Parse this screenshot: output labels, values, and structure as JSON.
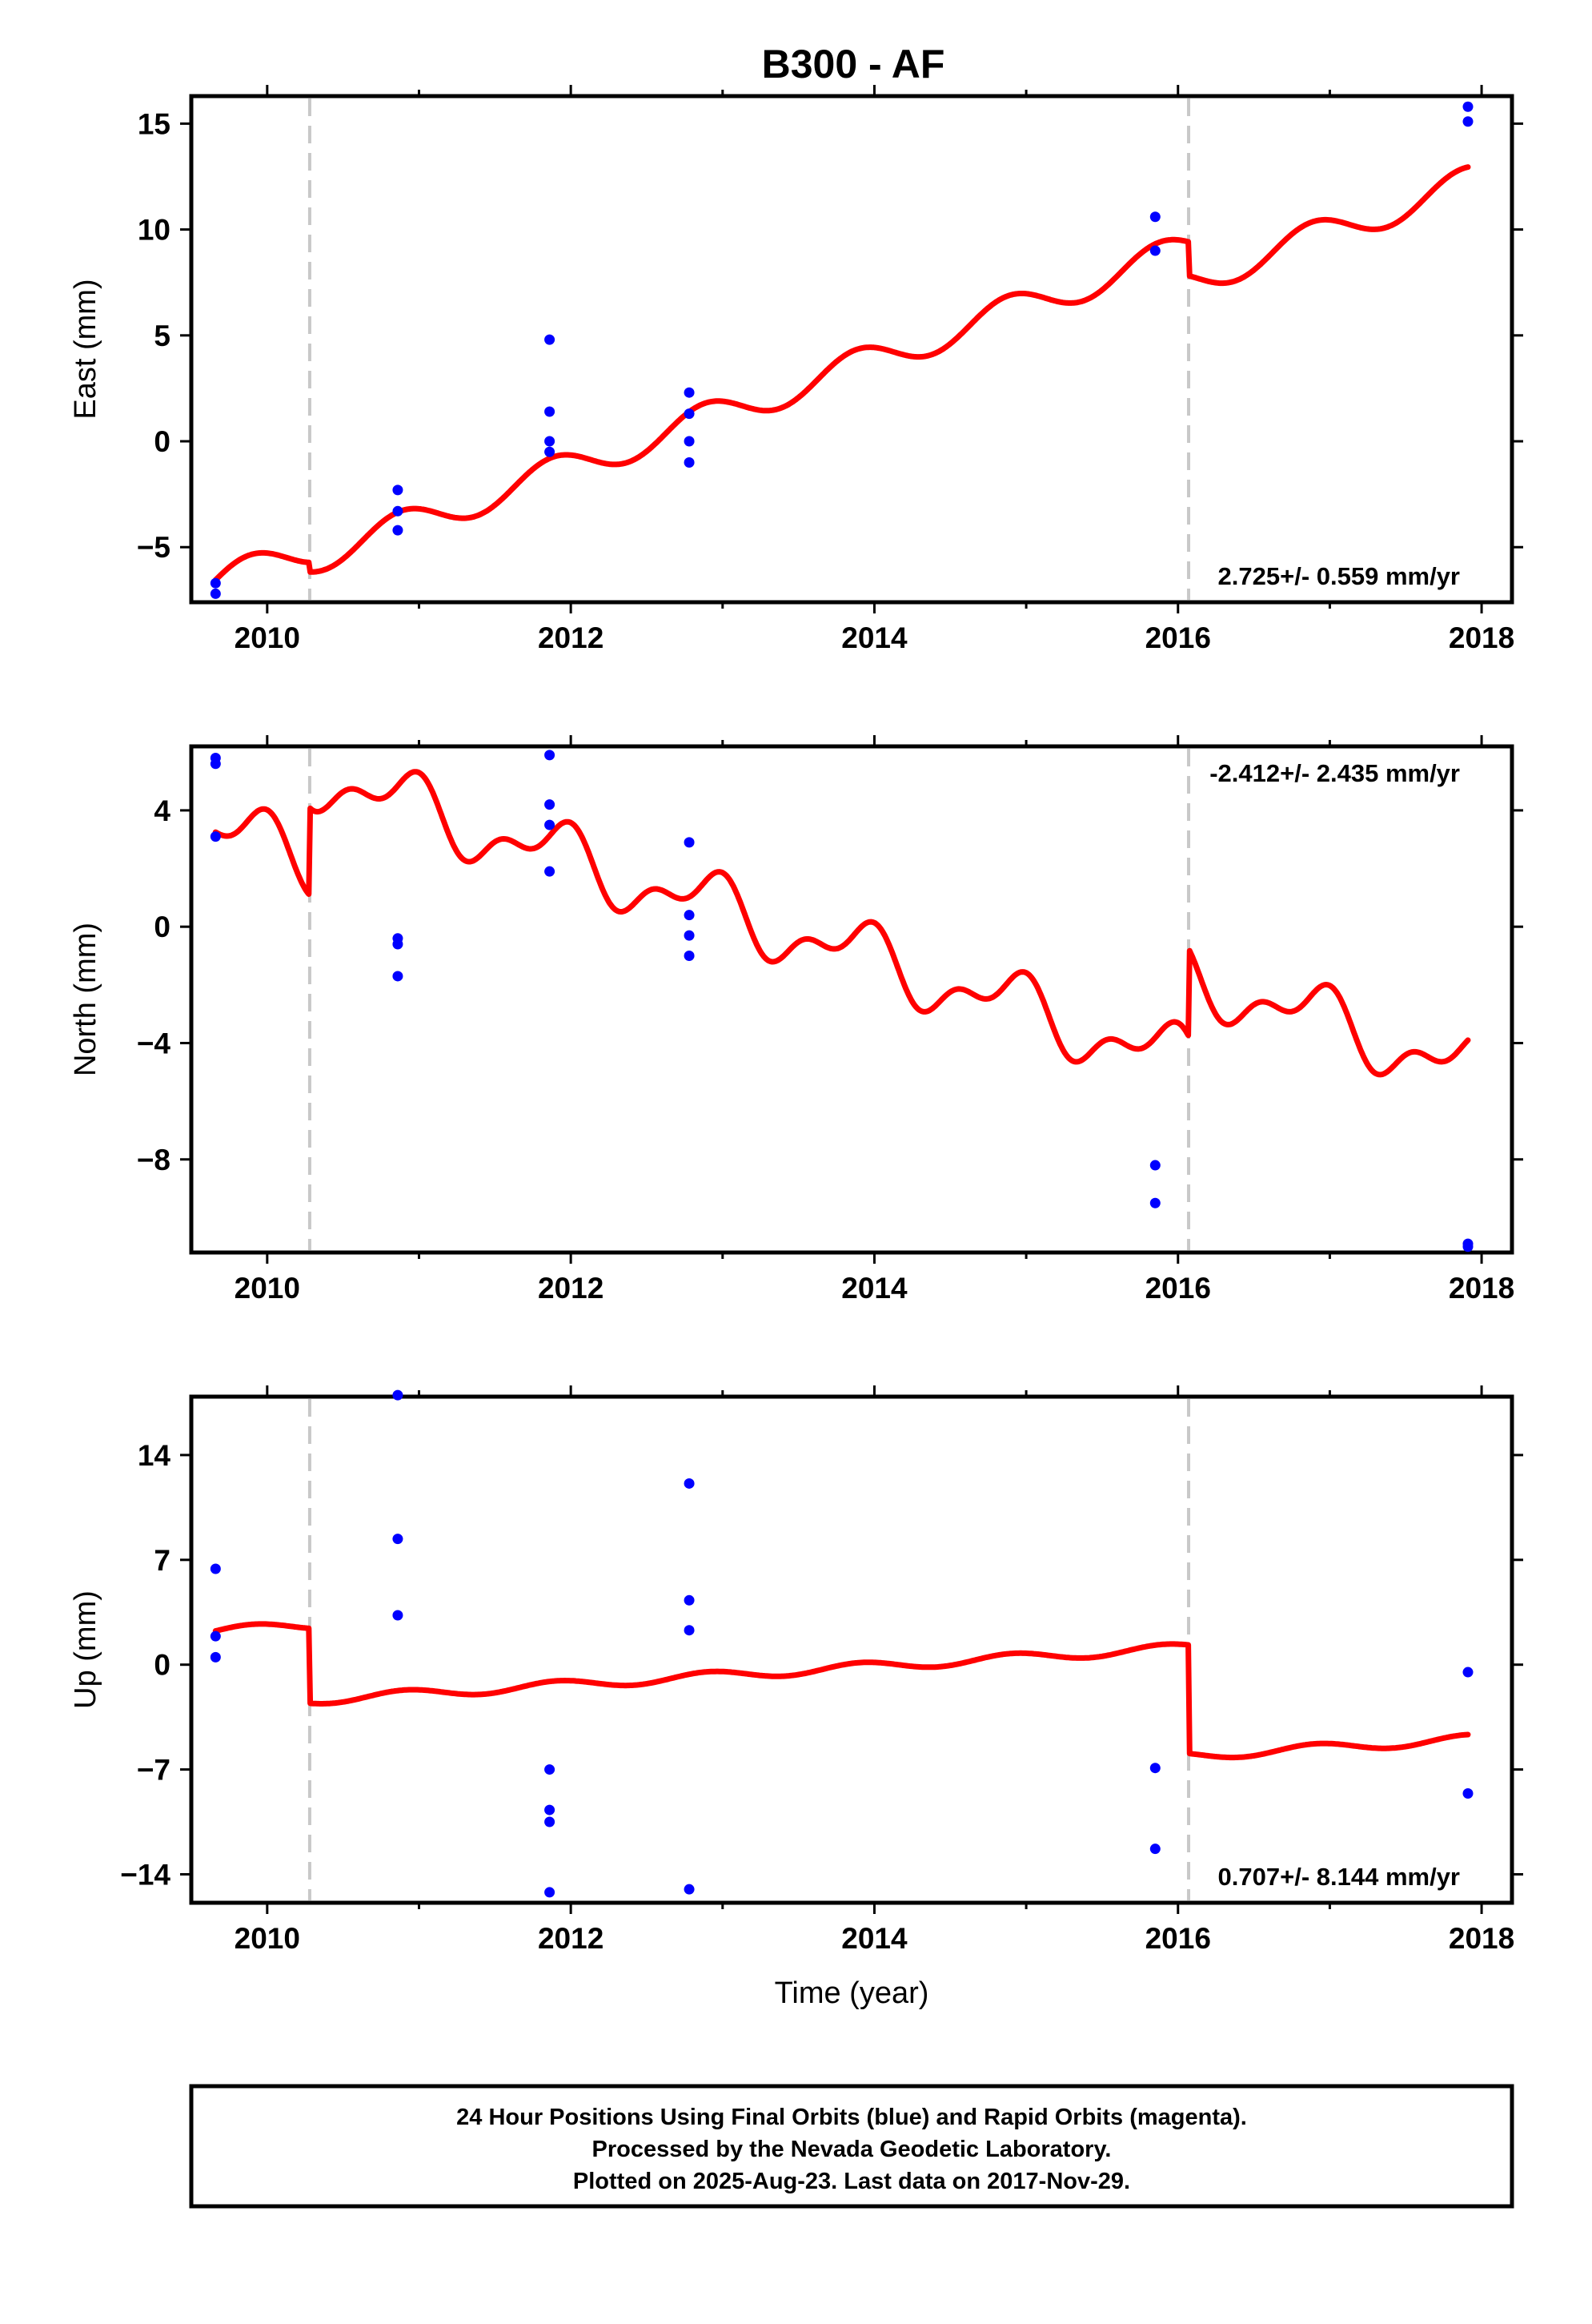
{
  "title": "B300 - AF",
  "chart_data": [
    {
      "type": "scatter",
      "ylabel": "East (mm)",
      "xlabel": "",
      "xlim": [
        2009.5,
        2018.2
      ],
      "ylim": [
        -7.6,
        16.3
      ],
      "xticks": [
        2010,
        2012,
        2014,
        2016,
        2018
      ],
      "yticks": [
        -5,
        0,
        5,
        10,
        15
      ],
      "ytick_labels": [
        "−5",
        "0",
        "5",
        "10",
        "15"
      ],
      "rate_label": "2.725+/- 0.559 mm/yr",
      "rate_position": "bottom-right",
      "breaks": [
        2010.28,
        2016.07
      ],
      "series": [
        {
          "color": "#0000ff",
          "points": [
            [
              2009.66,
              -6.7
            ],
            [
              2009.66,
              -7.2
            ],
            [
              2010.86,
              -2.3
            ],
            [
              2010.86,
              -3.3
            ],
            [
              2010.86,
              -4.2
            ],
            [
              2011.86,
              4.8
            ],
            [
              2011.86,
              1.4
            ],
            [
              2011.86,
              0.0
            ],
            [
              2011.86,
              -0.5
            ],
            [
              2012.78,
              2.3
            ],
            [
              2012.78,
              1.3
            ],
            [
              2012.78,
              0.0
            ],
            [
              2012.78,
              -1.0
            ],
            [
              2015.85,
              10.6
            ],
            [
              2015.85,
              9.0
            ],
            [
              2017.91,
              15.8
            ],
            [
              2017.91,
              15.1
            ]
          ]
        },
        {
          "color": "#ff0000",
          "model": {
            "x0": 2009.66,
            "y0": -6.55,
            "x_end": 2017.91,
            "rate": 2.54,
            "amp1": 0.75,
            "phase1": 2009.63,
            "amp2": 0.0,
            "phase2": 2009.9,
            "steps": [
              [
                2010.28,
                -0.45
              ],
              [
                2016.07,
                -1.6
              ]
            ]
          }
        }
      ]
    },
    {
      "type": "scatter",
      "ylabel": "North (mm)",
      "xlabel": "",
      "xlim": [
        2009.5,
        2018.2
      ],
      "ylim": [
        -11.2,
        6.2
      ],
      "xticks": [
        2010,
        2012,
        2014,
        2016,
        2018
      ],
      "yticks": [
        -8,
        -4,
        0,
        4
      ],
      "ytick_labels": [
        "−8",
        "−4",
        "0",
        "4"
      ],
      "rate_label": "-2.412+/- 2.435 mm/yr",
      "rate_position": "top-right",
      "breaks": [
        2010.28,
        2016.07
      ],
      "series": [
        {
          "color": "#0000ff",
          "points": [
            [
              2009.66,
              5.8
            ],
            [
              2009.66,
              5.6
            ],
            [
              2009.66,
              3.1
            ],
            [
              2010.86,
              -0.4
            ],
            [
              2010.86,
              -0.6
            ],
            [
              2010.86,
              -1.7
            ],
            [
              2011.86,
              5.9
            ],
            [
              2011.86,
              4.2
            ],
            [
              2011.86,
              3.5
            ],
            [
              2011.86,
              1.9
            ],
            [
              2012.78,
              2.9
            ],
            [
              2012.78,
              0.4
            ],
            [
              2012.78,
              -0.3
            ],
            [
              2012.78,
              -1.0
            ],
            [
              2015.85,
              -8.2
            ],
            [
              2015.85,
              -9.5
            ],
            [
              2017.91,
              -10.9
            ],
            [
              2017.91,
              -11.0
            ]
          ]
        },
        {
          "color": "#ff0000",
          "model": {
            "x0": 2009.66,
            "y0": 3.25,
            "x_end": 2017.91,
            "rate": -1.72,
            "amp1": 0.9,
            "phase1": 2009.66,
            "amp2": 0.55,
            "phase2": 2009.9,
            "steps": [
              [
                2010.28,
                3.0
              ],
              [
                2016.07,
                3.0
              ]
            ]
          }
        }
      ]
    },
    {
      "type": "scatter",
      "ylabel": "Up (mm)",
      "xlabel": "Time (year)",
      "xlim": [
        2009.5,
        2018.2
      ],
      "ylim": [
        -15.9,
        17.9
      ],
      "xticks": [
        2010,
        2012,
        2014,
        2016,
        2018
      ],
      "yticks": [
        -14,
        -7,
        0,
        7,
        14
      ],
      "ytick_labels": [
        "−14",
        "−7",
        "0",
        "7",
        "14"
      ],
      "rate_label": "0.707+/- 8.144 mm/yr",
      "rate_position": "bottom-right",
      "breaks": [
        2010.28,
        2016.07
      ],
      "series": [
        {
          "color": "#0000ff",
          "points": [
            [
              2009.66,
              6.4
            ],
            [
              2009.66,
              1.9
            ],
            [
              2009.66,
              0.5
            ],
            [
              2010.86,
              18.0
            ],
            [
              2010.86,
              8.4
            ],
            [
              2010.86,
              3.3
            ],
            [
              2011.86,
              -7.0
            ],
            [
              2011.86,
              -9.7
            ],
            [
              2011.86,
              -10.5
            ],
            [
              2011.86,
              -15.2
            ],
            [
              2012.78,
              12.1
            ],
            [
              2012.78,
              4.3
            ],
            [
              2012.78,
              2.3
            ],
            [
              2012.78,
              -15.0
            ],
            [
              2015.85,
              -6.9
            ],
            [
              2015.85,
              -12.3
            ],
            [
              2017.91,
              -0.5
            ],
            [
              2017.91,
              -8.6
            ]
          ]
        },
        {
          "color": "#ff0000",
          "model": {
            "x0": 2009.66,
            "y0": 2.25,
            "x_end": 2017.91,
            "rate": 0.61,
            "amp1": 0.3,
            "phase1": 2009.66,
            "amp2": 0.0,
            "phase2": 2009.9,
            "steps": [
              [
                2010.28,
                -5.0
              ],
              [
                2016.07,
                -7.25
              ]
            ]
          }
        }
      ]
    }
  ],
  "footer": {
    "lines": [
      "24 Hour Positions Using Final Orbits (blue) and Rapid Orbits (magenta).",
      "Processed by the Nevada Geodetic Laboratory.",
      "Plotted on 2025-Aug-23. Last data on 2017-Nov-29."
    ]
  }
}
